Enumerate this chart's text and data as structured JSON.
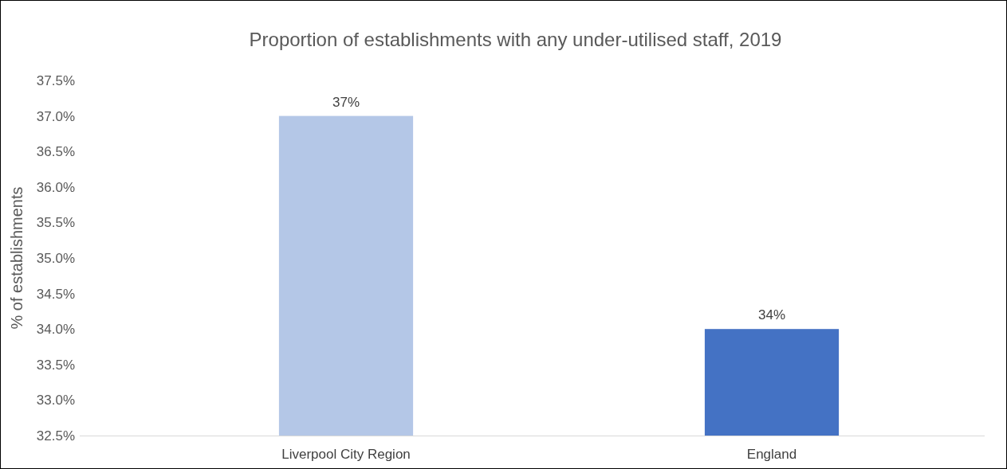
{
  "chart_data": {
    "type": "bar",
    "title": "Proportion of establishments with any under-utilised staff, 2019",
    "ylabel": "% of establishments",
    "categories": [
      "Liverpool City Region",
      "England"
    ],
    "values": [
      37,
      34
    ],
    "colors": [
      "#b4c7e7",
      "#4472c4"
    ],
    "value_labels": [
      "37%",
      "34%"
    ],
    "ylim": [
      32.5,
      37.5
    ],
    "yticks": [
      {
        "value": 32.5,
        "label": "32.5%"
      },
      {
        "value": 33,
        "label": "33.0%"
      },
      {
        "value": 33.5,
        "label": "33.5%"
      },
      {
        "value": 34,
        "label": "34.0%"
      },
      {
        "value": 34.5,
        "label": "34.5%"
      },
      {
        "value": 35,
        "label": "35.0%"
      },
      {
        "value": 35.5,
        "label": "35.5%"
      },
      {
        "value": 36,
        "label": "36.0%"
      },
      {
        "value": 36.5,
        "label": "36.5%"
      },
      {
        "value": 37,
        "label": "37.0%"
      },
      {
        "value": 37.5,
        "label": "37.5%"
      }
    ],
    "grid": false
  }
}
